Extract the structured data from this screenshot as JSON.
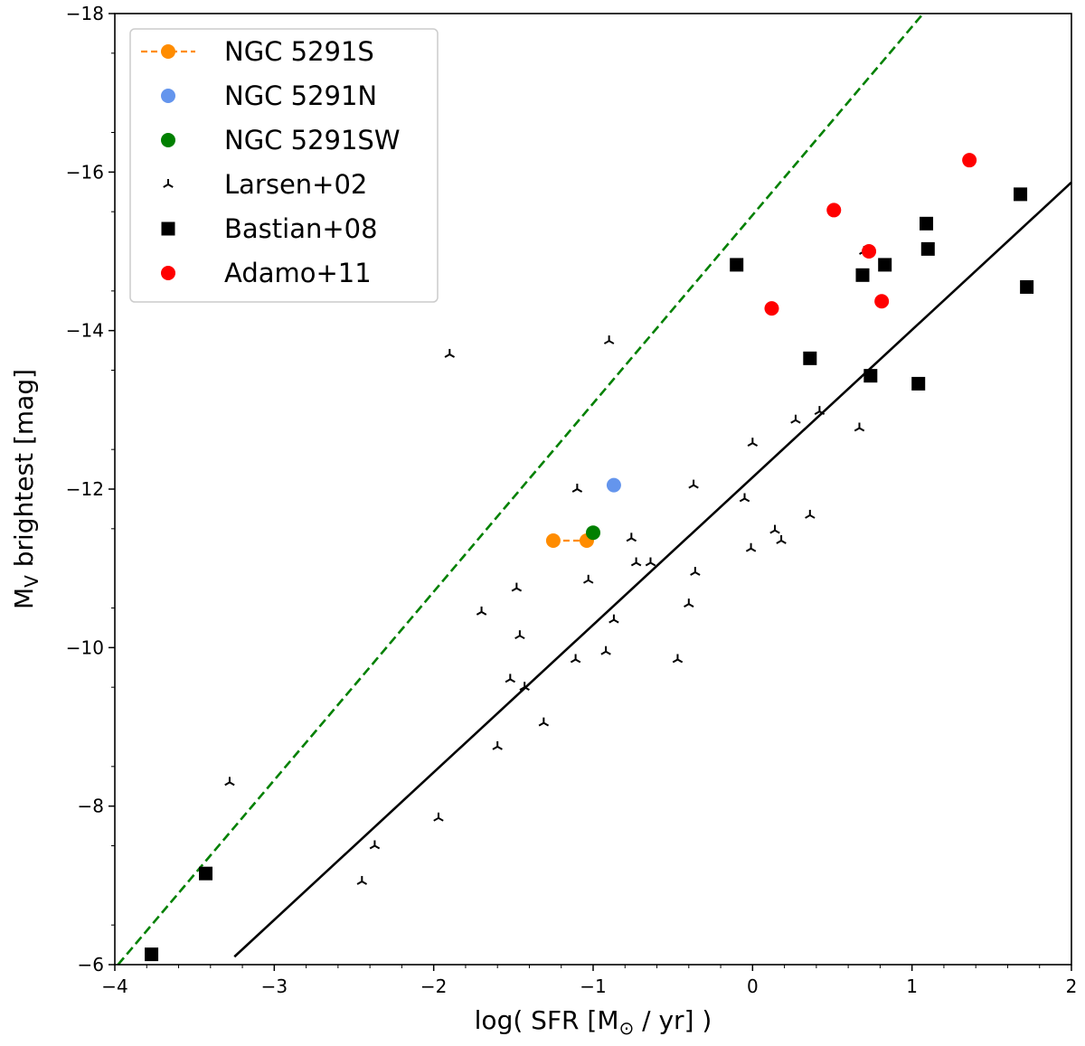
{
  "chart_data": {
    "type": "scatter",
    "xlabel": "log( SFR [M⊙ / yr] )",
    "xlabel_parts": {
      "pre": "log( SFR [M",
      "sub": "⊙",
      "post": " / yr] )"
    },
    "ylabel": "MV brightest [mag]",
    "ylabel_parts": {
      "pre": "M",
      "sub": "V",
      "post": " brightest [mag]"
    },
    "xlim": [
      -4,
      2
    ],
    "ylim": [
      -6,
      -18
    ],
    "y_inverted": true,
    "xticks": [
      -4,
      -3,
      -2,
      -1,
      0,
      1,
      2
    ],
    "xtick_labels": [
      "−4",
      "−3",
      "−2",
      "−1",
      "0",
      "1",
      "2"
    ],
    "yticks": [
      -6,
      -8,
      -10,
      -12,
      -14,
      -16,
      -18
    ],
    "ytick_labels": [
      "−6",
      "−8",
      "−10",
      "−12",
      "−14",
      "−16",
      "−18"
    ],
    "legend_position": "top-left",
    "series": [
      {
        "name": "NGC 5291S",
        "marker": "circle",
        "color": "#ff8c00",
        "line": "dashed",
        "points": [
          [
            -1.25,
            -11.35
          ],
          [
            -1.04,
            -11.35
          ]
        ]
      },
      {
        "name": "NGC 5291N",
        "marker": "circle",
        "color": "#6495ed",
        "points": [
          [
            -0.87,
            -12.05
          ]
        ]
      },
      {
        "name": "NGC 5291SW",
        "marker": "circle",
        "color": "#008000",
        "points": [
          [
            -1.0,
            -11.45
          ]
        ]
      },
      {
        "name": "Larsen+02",
        "marker": "tri",
        "color": "#000000",
        "points": [
          [
            -3.28,
            -8.3
          ],
          [
            -2.45,
            -7.05
          ],
          [
            -2.37,
            -7.5
          ],
          [
            -1.97,
            -7.85
          ],
          [
            -1.9,
            -13.7
          ],
          [
            -1.7,
            -10.45
          ],
          [
            -1.6,
            -8.75
          ],
          [
            -1.52,
            -9.6
          ],
          [
            -1.48,
            -10.75
          ],
          [
            -1.46,
            -10.15
          ],
          [
            -1.43,
            -9.5
          ],
          [
            -1.31,
            -9.05
          ],
          [
            -1.11,
            -9.85
          ],
          [
            -1.1,
            -12.0
          ],
          [
            -1.03,
            -10.85
          ],
          [
            -0.92,
            -9.95
          ],
          [
            -0.9,
            -13.87
          ],
          [
            -0.87,
            -10.35
          ],
          [
            -0.76,
            -11.38
          ],
          [
            -0.73,
            -11.07
          ],
          [
            -0.64,
            -11.07
          ],
          [
            -0.47,
            -9.85
          ],
          [
            -0.4,
            -10.55
          ],
          [
            -0.37,
            -12.05
          ],
          [
            -0.36,
            -10.95
          ],
          [
            -0.05,
            -11.88
          ],
          [
            -0.01,
            -11.25
          ],
          [
            0.0,
            -12.58
          ],
          [
            0.14,
            -11.48
          ],
          [
            0.18,
            -11.35
          ],
          [
            0.27,
            -12.87
          ],
          [
            0.36,
            -11.67
          ],
          [
            0.42,
            -12.98
          ],
          [
            0.67,
            -12.77
          ],
          [
            0.7,
            -15.0
          ]
        ]
      },
      {
        "name": "Bastian+08",
        "marker": "square",
        "color": "#000000",
        "points": [
          [
            -3.77,
            -6.13
          ],
          [
            -3.43,
            -7.15
          ],
          [
            -0.1,
            -14.83
          ],
          [
            0.36,
            -13.65
          ],
          [
            0.69,
            -14.7
          ],
          [
            0.74,
            -13.43
          ],
          [
            0.83,
            -14.83
          ],
          [
            1.04,
            -13.33
          ],
          [
            1.09,
            -15.35
          ],
          [
            1.1,
            -15.03
          ],
          [
            1.68,
            -15.72
          ],
          [
            1.72,
            -14.55
          ]
        ]
      },
      {
        "name": "Adamo+11",
        "marker": "circle",
        "color": "#ff0000",
        "points": [
          [
            0.12,
            -14.28
          ],
          [
            0.51,
            -15.52
          ],
          [
            0.73,
            -15.0
          ],
          [
            0.81,
            -14.37
          ],
          [
            1.36,
            -16.15
          ]
        ]
      }
    ],
    "lines": [
      {
        "name": "black-fit-line",
        "color": "#000000",
        "style": "solid",
        "points": [
          [
            -3.25,
            -6.1
          ],
          [
            2.0,
            -15.87
          ]
        ]
      },
      {
        "name": "green-dashed-line",
        "color": "#008000",
        "style": "dashed",
        "points": [
          [
            -3.98,
            -6.0
          ],
          [
            1.07,
            -18.0
          ]
        ]
      }
    ]
  }
}
